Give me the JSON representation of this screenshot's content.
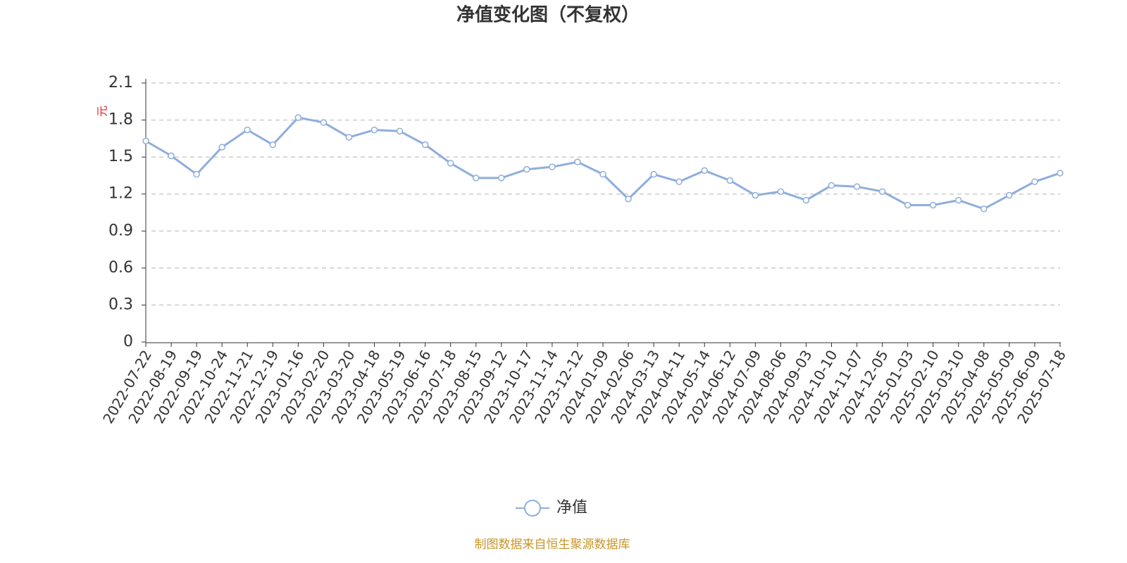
{
  "chart_data": {
    "type": "line",
    "title": "净值变化图（不复权）",
    "y_label": "元",
    "source": "制图数据来自恒生聚源数据库",
    "categories": [
      "2022-07-22",
      "2022-08-19",
      "2022-09-19",
      "2022-10-24",
      "2022-11-21",
      "2022-12-19",
      "2023-01-16",
      "2023-02-20",
      "2023-03-20",
      "2023-04-18",
      "2023-05-19",
      "2023-06-16",
      "2023-07-18",
      "2023-08-15",
      "2023-09-12",
      "2023-10-17",
      "2023-11-14",
      "2023-12-12",
      "2024-01-09",
      "2024-02-06",
      "2024-03-13",
      "2024-04-11",
      "2024-05-14",
      "2024-06-12",
      "2024-07-09",
      "2024-08-06",
      "2024-09-03",
      "2024-10-10",
      "2024-11-07",
      "2024-12-05",
      "2025-01-03",
      "2025-02-10",
      "2025-03-10",
      "2025-04-08",
      "2025-05-09",
      "2025-06-09",
      "2025-07-18"
    ],
    "series": [
      {
        "name": "净值",
        "color": "#8eaedc",
        "values": [
          1.63,
          1.51,
          1.36,
          1.58,
          1.72,
          1.6,
          1.82,
          1.78,
          1.66,
          1.72,
          1.71,
          1.6,
          1.45,
          1.33,
          1.33,
          1.4,
          1.42,
          1.46,
          1.36,
          1.16,
          1.36,
          1.3,
          1.39,
          1.31,
          1.19,
          1.22,
          1.15,
          1.27,
          1.26,
          1.22,
          1.11,
          1.11,
          1.15,
          1.08,
          1.19,
          1.3,
          1.37
        ]
      }
    ],
    "ylim": [
      0,
      2.1
    ],
    "yticks": [
      0,
      0.3,
      0.6,
      0.9,
      1.2,
      1.5,
      1.8,
      2.1
    ],
    "grid": true
  }
}
